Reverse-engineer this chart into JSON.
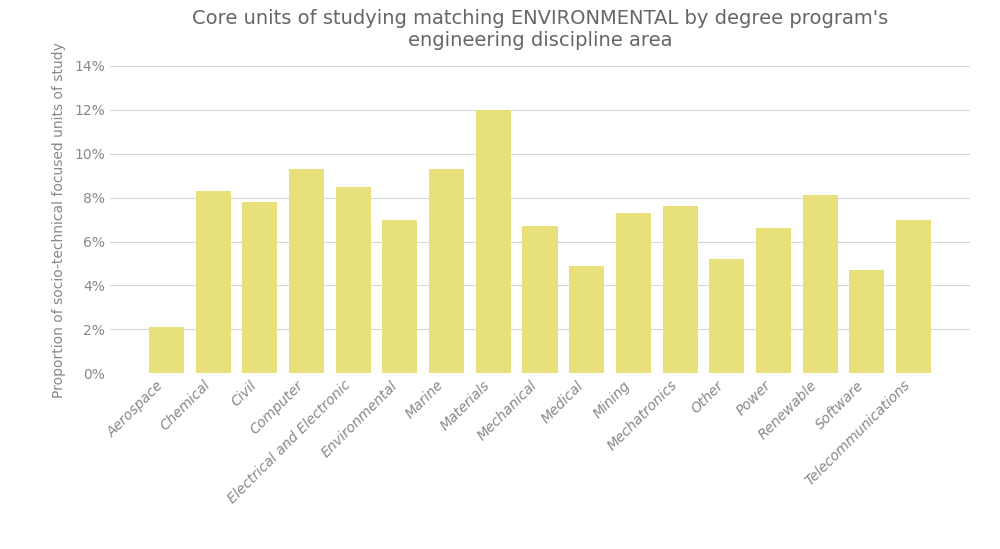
{
  "categories": [
    "Aerospace",
    "Chemical",
    "Civil",
    "Computer",
    "Electrical and Electronic",
    "Environmental",
    "Marine",
    "Materials",
    "Mechanical",
    "Medical",
    "Mining",
    "Mechatronics",
    "Other",
    "Power",
    "Renewable",
    "Software",
    "Telecommunications"
  ],
  "values": [
    0.021,
    0.083,
    0.078,
    0.093,
    0.085,
    0.07,
    0.093,
    0.12,
    0.067,
    0.049,
    0.073,
    0.076,
    0.052,
    0.066,
    0.081,
    0.047,
    0.07
  ],
  "bar_color": "#e8e07a",
  "bar_edgecolor": "none",
  "title_line1": "Core units of studying matching ENVIRONMENTAL by degree program's",
  "title_line2": "engineering discipline area",
  "ylabel": "Proportion of socio-technical focused units of study",
  "ylim": [
    0,
    0.14
  ],
  "yticks": [
    0,
    0.02,
    0.04,
    0.06,
    0.08,
    0.1,
    0.12,
    0.14
  ],
  "ytick_labels": [
    "0%",
    "2%",
    "4%",
    "6%",
    "8%",
    "10%",
    "12%",
    "14%"
  ],
  "background_color": "#ffffff",
  "grid_color": "#d8d8d8",
  "title_fontsize": 14,
  "ylabel_fontsize": 10,
  "tick_fontsize": 10,
  "bar_width": 0.75
}
